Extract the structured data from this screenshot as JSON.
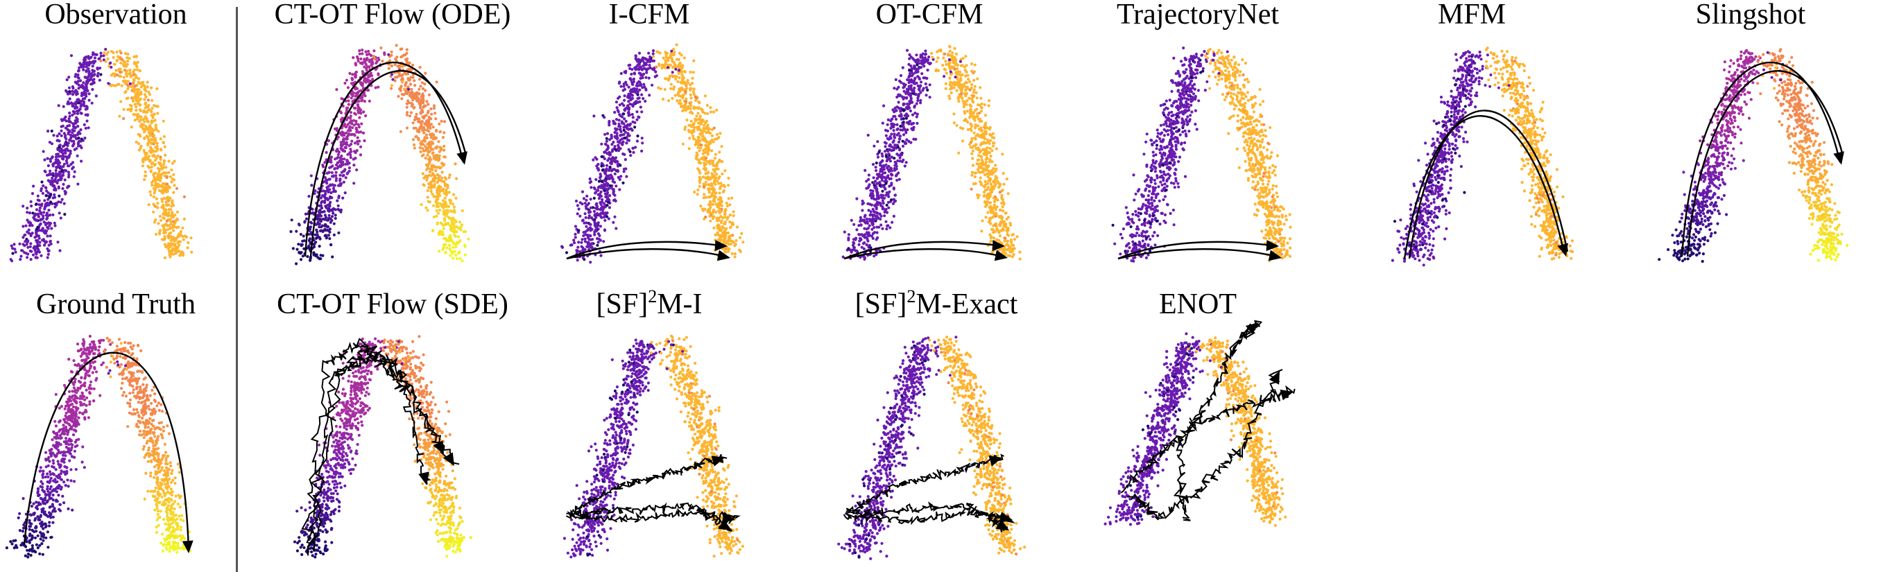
{
  "figure": {
    "panels": [
      {
        "title": "Observation",
        "trajectory": "none"
      },
      {
        "title": "CT-OT Flow (ODE)",
        "trajectory": "big-arc"
      },
      {
        "title": "I-CFM",
        "trajectory": "straight-bottom"
      },
      {
        "title": "OT-CFM",
        "trajectory": "straight-bottom"
      },
      {
        "title": "TrajectoryNet",
        "trajectory": "straight-bottom"
      },
      {
        "title": "MFM",
        "trajectory": "inner-arc"
      },
      {
        "title": "Slingshot",
        "trajectory": "big-arc"
      },
      {
        "title": "Ground Truth",
        "trajectory": "single-arc"
      },
      {
        "title": "CT-OT Flow (SDE)",
        "trajectory": "noisy-arc"
      },
      {
        "title_main": "[SF]",
        "title_sup": "2",
        "title_rest": "M-I",
        "trajectory": "noisy-bottom"
      },
      {
        "title_main": "[SF]",
        "title_sup": "2",
        "title_rest": "M-Exact",
        "trajectory": "noisy-bottom"
      },
      {
        "title": "ENOT",
        "trajectory": "noisy-cross"
      }
    ]
  },
  "chart_data": {
    "type": "scatter",
    "description_series": [
      {
        "name": "left branch",
        "colormap": "plasma (low)"
      },
      {
        "name": "right branch",
        "colormap": "plasma (high)"
      }
    ],
    "colors": {
      "dark_blue": "#1b0c6b",
      "purple": "#6a1bb0",
      "magenta": "#a82fa0",
      "orange": "#f2874f",
      "amber": "#fdb42f",
      "yellow": "#f0f921",
      "trajectory": "#000000"
    },
    "axis_visible": false,
    "grid": false
  }
}
